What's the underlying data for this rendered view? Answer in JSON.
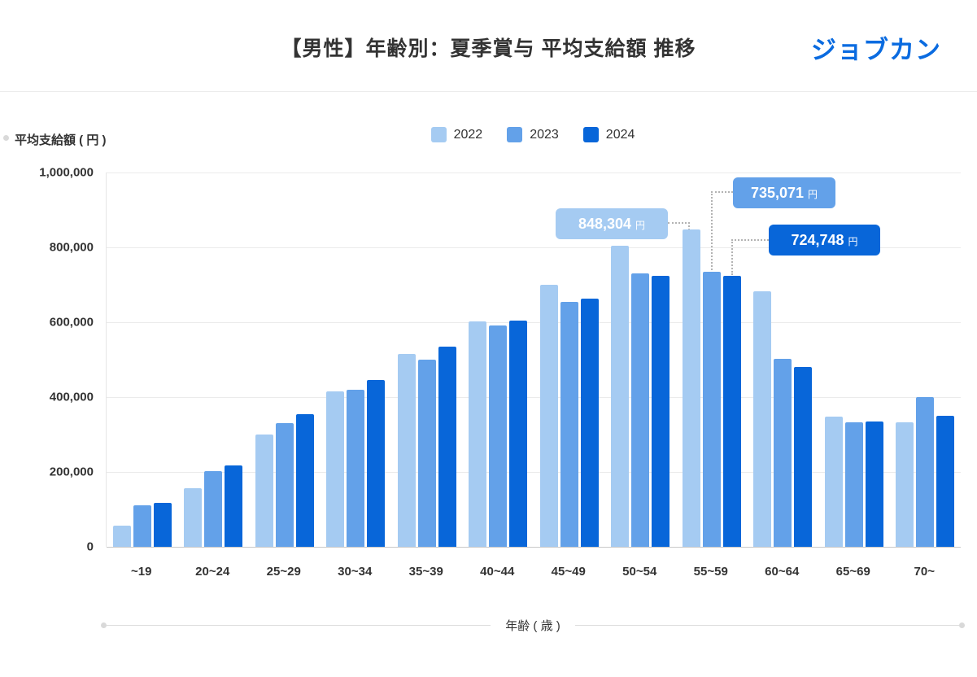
{
  "header": {
    "title": "【男性】年齢別：夏季賞与 平均支給額 推移",
    "logo": "ジョブカン",
    "logo_color": "#0a6be0"
  },
  "axes": {
    "y_title": "平均支給額 ( 円 )",
    "x_title": "年齢 ( 歳 )",
    "y_ticks": [
      "1,000,000",
      "800,000",
      "600,000",
      "400,000",
      "200,000",
      "0"
    ]
  },
  "legend": [
    {
      "label": "2022",
      "color": "#a5cbf2"
    },
    {
      "label": "2023",
      "color": "#63a1e9"
    },
    {
      "label": "2024",
      "color": "#0866d9"
    }
  ],
  "annotations": [
    {
      "value": "848,304",
      "unit": "円",
      "series": "2022",
      "category": "55~59",
      "color": "#a5cbf2"
    },
    {
      "value": "735,071",
      "unit": "円",
      "series": "2023",
      "category": "55~59",
      "color": "#63a1e9"
    },
    {
      "value": "724,748",
      "unit": "円",
      "series": "2024",
      "category": "55~59",
      "color": "#0866d9"
    }
  ],
  "chart_data": {
    "type": "bar",
    "title": "【男性】年齢別：夏季賞与 平均支給額 推移",
    "xlabel": "年齢 ( 歳 )",
    "ylabel": "平均支給額 ( 円 )",
    "ylim": [
      0,
      1000000
    ],
    "grid": true,
    "legend_position": "top-center",
    "categories": [
      "~19",
      "20~24",
      "25~29",
      "30~34",
      "35~39",
      "40~44",
      "45~49",
      "50~54",
      "55~59",
      "60~64",
      "65~69",
      "70~"
    ],
    "series": [
      {
        "name": "2022",
        "color": "#a5cbf2",
        "values": [
          57000,
          157000,
          300000,
          415000,
          515000,
          603000,
          700000,
          805000,
          848304,
          683000,
          348000,
          333000
        ]
      },
      {
        "name": "2023",
        "color": "#63a1e9",
        "values": [
          110000,
          203000,
          330000,
          420000,
          500000,
          592000,
          655000,
          731000,
          735071,
          502000,
          333000,
          400000
        ]
      },
      {
        "name": "2024",
        "color": "#0866d9",
        "values": [
          118000,
          218000,
          355000,
          445000,
          535000,
          605000,
          662000,
          724000,
          724748,
          480000,
          335000,
          350000
        ]
      }
    ]
  }
}
